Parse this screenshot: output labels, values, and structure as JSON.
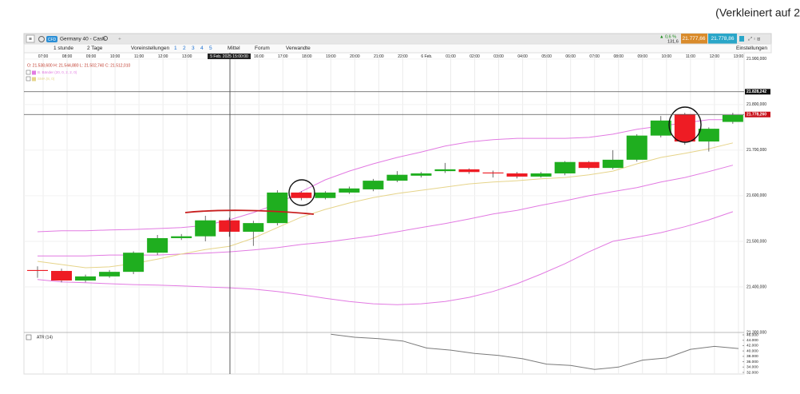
{
  "header": {
    "note": "(Verkleinert auf 2"
  },
  "toolbar": {
    "badge": "CFD",
    "instrument": "Germany 40 - Cash",
    "change": "▲ 0,6 %",
    "change_points": "131,6",
    "bid": "21.777,66",
    "ask": "21.778,86",
    "interval": "1 stunde",
    "range": "2 Tage",
    "presets": "Voreinstellungen",
    "layouts": [
      "1",
      "2",
      "3",
      "4",
      "5"
    ],
    "size": "Mittel",
    "forum": "Forum",
    "related": "Verwandte",
    "settings": "Einstellungen"
  },
  "chart_data": {
    "type": "candlestick",
    "ohlc_label": "O: 21.538,600  H: 21.544,880  L: 21.502,740  C: 21.512,010",
    "crosshair_label": "5 Feb. 2025 15:00:00",
    "categories": [
      "07:00",
      "08:00",
      "09:00",
      "10:00",
      "11:00",
      "12:00",
      "13:00",
      null,
      null,
      "16:00",
      "17:00",
      "18:00",
      "19:00",
      "20:00",
      "21:00",
      "22:00",
      "6 Feb.",
      "01:00",
      "02:00",
      "03:00",
      "04:00",
      "05:00",
      "06:00",
      "07:00",
      "08:00",
      "09:00",
      "10:00",
      "11:00",
      "12:00",
      "13:00"
    ],
    "open": [
      21437,
      21435,
      21414,
      21423,
      21433,
      21475,
      21507,
      21511,
      21546,
      21521,
      21540,
      21607,
      21595,
      21607,
      21614,
      21633,
      21644,
      21654,
      21658,
      21651,
      21649,
      21642,
      21649,
      21674,
      21661,
      21679,
      21732,
      21779,
      21719,
      21762
    ],
    "high": [
      21445,
      21440,
      21427,
      21437,
      21478,
      21514,
      21516,
      21556,
      21552,
      21545,
      21612,
      21610,
      21610,
      21620,
      21637,
      21654,
      21652,
      21672,
      21660,
      21655,
      21652,
      21652,
      21676,
      21676,
      21700,
      21735,
      21775,
      21782,
      21750,
      21782
    ],
    "low": [
      21420,
      21410,
      21410,
      21420,
      21428,
      21470,
      21503,
      21500,
      21510,
      21490,
      21535,
      21590,
      21592,
      21604,
      21610,
      21630,
      21640,
      21650,
      21648,
      21640,
      21638,
      21640,
      21645,
      21658,
      21658,
      21675,
      21728,
      21712,
      21697,
      21758
    ],
    "close": [
      21435,
      21414,
      21423,
      21433,
      21475,
      21507,
      21511,
      21546,
      21521,
      21540,
      21607,
      21595,
      21607,
      21616,
      21633,
      21646,
      21649,
      21658,
      21652,
      21649,
      21642,
      21649,
      21674,
      21661,
      21679,
      21732,
      21765,
      21719,
      21747,
      21777
    ],
    "up_color": "#1fae1f",
    "down_color": "#ee1c24",
    "series": [
      {
        "name": "B. Bänder (20, 0, 2, 2, 0)",
        "color": "#e27ae2",
        "values": [
          21521,
          21523,
          21523,
          21525,
          21526,
          21528,
          21530,
          21535,
          21547,
          21563,
          21582,
          21609,
          21635,
          21654,
          21670,
          21684,
          21696,
          21709,
          21718,
          21723,
          21726,
          21726,
          21726,
          21728,
          21735,
          21746,
          21753,
          21760,
          21767,
          21767
        ]
      },
      {
        "color": "#e27ae2",
        "values": [
          21468,
          21468,
          21468,
          21470,
          21470,
          21470,
          21472,
          21474,
          21477,
          21481,
          21486,
          21493,
          21498,
          21505,
          21512,
          21521,
          21530,
          21539,
          21549,
          21560,
          21568,
          21579,
          21589,
          21600,
          21609,
          21618,
          21630,
          21640,
          21653,
          21667
        ]
      },
      {
        "color": "#e27ae2",
        "values": [
          21416,
          21411,
          21409,
          21407,
          21405,
          21404,
          21402,
          21400,
          21398,
          21395,
          21390,
          21383,
          21375,
          21368,
          21363,
          21361,
          21363,
          21368,
          21377,
          21390,
          21407,
          21428,
          21451,
          21477,
          21500,
          21509,
          21519,
          21532,
          21547,
          21565
        ]
      },
      {
        "name": "SMA (8, 0)",
        "color": "#e6d48a",
        "values": [
          21456,
          21449,
          21442,
          21444,
          21451,
          21461,
          21472,
          21482,
          21489,
          21507,
          21530,
          21553,
          21570,
          21584,
          21596,
          21605,
          21612,
          21619,
          21626,
          21630,
          21633,
          21637,
          21640,
          21646,
          21654,
          21670,
          21684,
          21693,
          21703,
          21716
        ]
      }
    ],
    "ylim": [
      21300,
      21912
    ],
    "yticks": [
      {
        "value": 21300,
        "label": "21.300,000"
      },
      {
        "value": 21400,
        "label": "21.400,000"
      },
      {
        "value": 21500,
        "label": "21.500,000"
      },
      {
        "value": 21600,
        "label": "21.600,000"
      },
      {
        "value": 21700,
        "label": "21.700,000"
      },
      {
        "value": 21800,
        "label": "21.800,000"
      },
      {
        "value": 21900,
        "label": "21.900,000"
      }
    ],
    "price_lines": [
      {
        "value": 21828.242,
        "label": "21.828,242",
        "color": "#111111"
      },
      {
        "value": 21778.26,
        "label": "21.778,260",
        "color": "#c8101a"
      }
    ],
    "atr": {
      "name": "ATR (14)",
      "color": "#7a7a7a",
      "values": [
        null,
        null,
        null,
        null,
        null,
        null,
        null,
        null,
        null,
        null,
        null,
        null,
        46.2,
        45.1,
        44.6,
        43.7,
        41.1,
        40.3,
        39.1,
        38.3,
        37.1,
        35.1,
        34.6,
        33.1,
        34.0,
        36.6,
        37.4,
        40.6,
        41.7,
        40.9
      ],
      "ylim": [
        31.4,
        46.6
      ],
      "yticks": [
        {
          "value": 32,
          "label": "32.000"
        },
        {
          "value": 34,
          "label": "34.000"
        },
        {
          "value": 36,
          "label": "36.000"
        },
        {
          "value": 38,
          "label": "38.000"
        },
        {
          "value": 40,
          "label": "40.000"
        },
        {
          "value": 42,
          "label": "42.000"
        },
        {
          "value": 44,
          "label": "44.000"
        },
        {
          "value": 46,
          "label": "46.000"
        }
      ]
    }
  }
}
